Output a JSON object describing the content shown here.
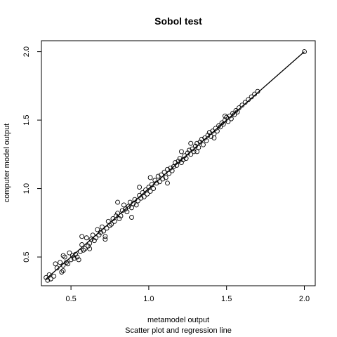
{
  "chart_data": {
    "type": "scatter",
    "title": "Sobol test",
    "xlabel": "metamodel output",
    "subtitle": "Scatter plot and regression line",
    "ylabel": "computer model output",
    "xlim": [
      0.31,
      2.07
    ],
    "ylim": [
      0.29,
      2.08
    ],
    "xticks": [
      0.5,
      1.0,
      1.5,
      2.0
    ],
    "xtick_labels": [
      "0.5",
      "1.0",
      "1.5",
      "2.0"
    ],
    "yticks": [
      0.5,
      1.0,
      1.5,
      2.0
    ],
    "ytick_labels": [
      "0.5",
      "1.0",
      "1.5",
      "2.0"
    ],
    "grid": false,
    "regression_line": {
      "x": [
        0.34,
        2.0
      ],
      "y": [
        0.34,
        2.0
      ]
    },
    "series": [
      {
        "marker": "open-circle",
        "points": [
          [
            0.34,
            0.35
          ],
          [
            0.35,
            0.33
          ],
          [
            0.36,
            0.37
          ],
          [
            0.37,
            0.34
          ],
          [
            0.39,
            0.36
          ],
          [
            0.4,
            0.45
          ],
          [
            0.41,
            0.42
          ],
          [
            0.43,
            0.46
          ],
          [
            0.44,
            0.39
          ],
          [
            0.45,
            0.4
          ],
          [
            0.45,
            0.44
          ],
          [
            0.46,
            0.5
          ],
          [
            0.47,
            0.46
          ],
          [
            0.48,
            0.45
          ],
          [
            0.49,
            0.53
          ],
          [
            0.5,
            0.48
          ],
          [
            0.51,
            0.51
          ],
          [
            0.52,
            0.49
          ],
          [
            0.53,
            0.52
          ],
          [
            0.54,
            0.5
          ],
          [
            0.55,
            0.48
          ],
          [
            0.56,
            0.54
          ],
          [
            0.57,
            0.59
          ],
          [
            0.58,
            0.55
          ],
          [
            0.59,
            0.56
          ],
          [
            0.6,
            0.64
          ],
          [
            0.61,
            0.58
          ],
          [
            0.62,
            0.6
          ],
          [
            0.63,
            0.63
          ],
          [
            0.64,
            0.66
          ],
          [
            0.65,
            0.62
          ],
          [
            0.66,
            0.64
          ],
          [
            0.67,
            0.7
          ],
          [
            0.68,
            0.66
          ],
          [
            0.69,
            0.68
          ],
          [
            0.7,
            0.72
          ],
          [
            0.71,
            0.69
          ],
          [
            0.72,
            0.65
          ],
          [
            0.73,
            0.71
          ],
          [
            0.74,
            0.76
          ],
          [
            0.75,
            0.73
          ],
          [
            0.76,
            0.74
          ],
          [
            0.77,
            0.78
          ],
          [
            0.78,
            0.76
          ],
          [
            0.79,
            0.8
          ],
          [
            0.8,
            0.82
          ],
          [
            0.81,
            0.78
          ],
          [
            0.82,
            0.8
          ],
          [
            0.83,
            0.84
          ],
          [
            0.84,
            0.88
          ],
          [
            0.85,
            0.85
          ],
          [
            0.86,
            0.83
          ],
          [
            0.87,
            0.87
          ],
          [
            0.88,
            0.9
          ],
          [
            0.89,
            0.86
          ],
          [
            0.9,
            0.89
          ],
          [
            0.91,
            0.92
          ],
          [
            0.92,
            0.88
          ],
          [
            0.93,
            0.91
          ],
          [
            0.94,
            0.95
          ],
          [
            0.95,
            0.93
          ],
          [
            0.96,
            0.97
          ],
          [
            0.97,
            0.94
          ],
          [
            0.98,
            0.99
          ],
          [
            0.99,
            0.96
          ],
          [
            1.0,
            1.01
          ],
          [
            1.01,
            0.98
          ],
          [
            1.02,
            1.03
          ],
          [
            1.03,
            1.0
          ],
          [
            1.04,
            1.06
          ],
          [
            1.05,
            1.04
          ],
          [
            1.06,
            1.09
          ],
          [
            1.07,
            1.05
          ],
          [
            1.08,
            1.1
          ],
          [
            1.09,
            1.07
          ],
          [
            1.1,
            1.12
          ],
          [
            1.11,
            1.08
          ],
          [
            1.12,
            1.14
          ],
          [
            1.13,
            1.11
          ],
          [
            1.14,
            1.15
          ],
          [
            1.15,
            1.13
          ],
          [
            1.16,
            1.16
          ],
          [
            1.17,
            1.19
          ],
          [
            1.18,
            1.17
          ],
          [
            1.19,
            1.2
          ],
          [
            1.2,
            1.22
          ],
          [
            1.21,
            1.19
          ],
          [
            1.22,
            1.21
          ],
          [
            1.23,
            1.24
          ],
          [
            1.24,
            1.22
          ],
          [
            1.25,
            1.26
          ],
          [
            1.26,
            1.28
          ],
          [
            1.27,
            1.25
          ],
          [
            1.28,
            1.29
          ],
          [
            1.29,
            1.27
          ],
          [
            1.3,
            1.31
          ],
          [
            1.31,
            1.33
          ],
          [
            1.32,
            1.3
          ],
          [
            1.33,
            1.34
          ],
          [
            1.34,
            1.36
          ],
          [
            1.35,
            1.32
          ],
          [
            1.36,
            1.37
          ],
          [
            1.37,
            1.35
          ],
          [
            1.38,
            1.39
          ],
          [
            1.39,
            1.41
          ],
          [
            1.4,
            1.38
          ],
          [
            1.41,
            1.42
          ],
          [
            1.42,
            1.4
          ],
          [
            1.43,
            1.44
          ],
          [
            1.44,
            1.42
          ],
          [
            1.45,
            1.46
          ],
          [
            1.46,
            1.45
          ],
          [
            1.47,
            1.48
          ],
          [
            1.48,
            1.47
          ],
          [
            1.49,
            1.5
          ],
          [
            1.5,
            1.52
          ],
          [
            1.51,
            1.49
          ],
          [
            1.52,
            1.53
          ],
          [
            1.53,
            1.51
          ],
          [
            1.54,
            1.55
          ],
          [
            1.55,
            1.54
          ],
          [
            1.56,
            1.57
          ],
          [
            1.57,
            1.56
          ],
          [
            1.58,
            1.59
          ],
          [
            1.6,
            1.61
          ],
          [
            1.62,
            1.63
          ],
          [
            1.64,
            1.65
          ],
          [
            1.66,
            1.67
          ],
          [
            1.68,
            1.69
          ],
          [
            1.7,
            1.71
          ],
          [
            0.57,
            0.65
          ],
          [
            0.72,
            0.63
          ],
          [
            0.8,
            0.9
          ],
          [
            0.89,
            0.79
          ],
          [
            1.01,
            1.08
          ],
          [
            1.12,
            1.04
          ],
          [
            1.21,
            1.27
          ],
          [
            1.27,
            1.33
          ],
          [
            1.31,
            1.27
          ],
          [
            1.42,
            1.37
          ],
          [
            1.49,
            1.53
          ],
          [
            0.45,
            0.51
          ],
          [
            0.62,
            0.56
          ],
          [
            0.94,
            1.01
          ],
          [
            2.0,
            2.0
          ]
        ]
      }
    ]
  }
}
